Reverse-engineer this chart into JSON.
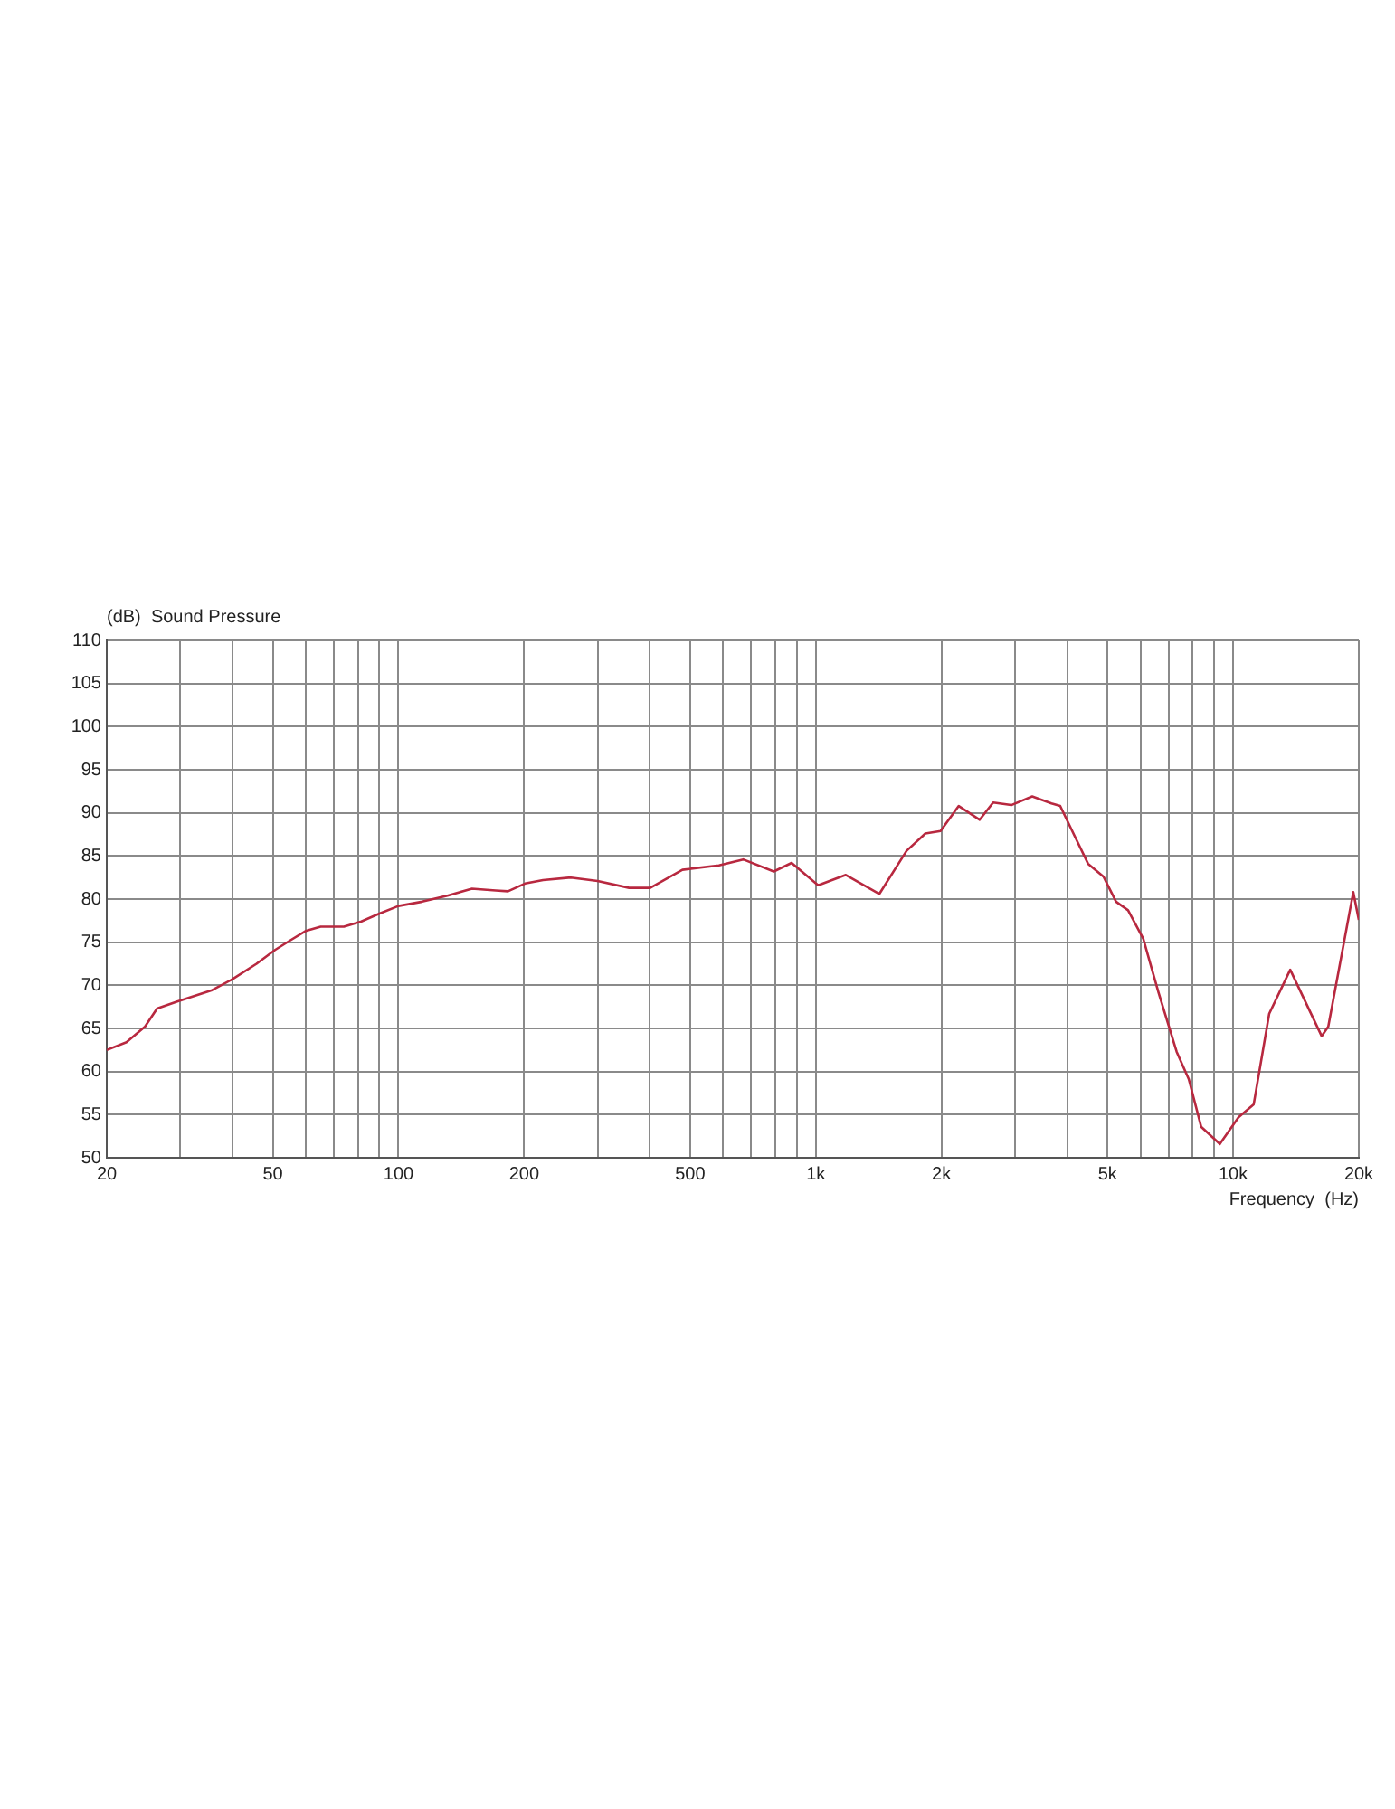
{
  "chart_data": {
    "type": "line",
    "ylabel": "(dB)  Sound Pressure",
    "xlabel": "Frequency  (Hz)",
    "log": "x",
    "grid": true,
    "marker": "none",
    "line_style": "solid",
    "x": [
      20,
      22.3,
      24.7,
      26.4,
      29.4,
      35.6,
      40,
      45.7,
      50.6,
      55,
      59.9,
      65.1,
      74,
      81.5,
      89.8,
      100,
      114,
      131,
      150,
      171,
      183,
      201,
      222,
      259,
      300,
      357,
      401,
      479,
      586,
      670,
      793,
      875,
      1013,
      1180,
      1420,
      1650,
      1830,
      1990,
      2200,
      2470,
      2660,
      2940,
      3300,
      3670,
      3850,
      4200,
      4490,
      4890,
      5240,
      5600,
      6090,
      6620,
      7320,
      7830,
      8380,
      9290,
      10300,
      11200,
      12200,
      13700,
      16300,
      16900,
      19400,
      20000
    ],
    "series": [
      {
        "color": "#b8283f",
        "values": [
          62.5,
          63.4,
          65.2,
          67.3,
          68.1,
          69.4,
          70.7,
          72.5,
          74.1,
          75.2,
          76.3,
          76.8,
          76.8,
          77.4,
          78.3,
          79.2,
          79.7,
          80.4,
          81.2,
          81.0,
          80.9,
          81.8,
          82.2,
          82.5,
          82.1,
          81.3,
          81.3,
          83.4,
          83.9,
          84.6,
          83.2,
          84.2,
          81.6,
          82.8,
          80.6,
          85.6,
          87.6,
          87.9,
          90.8,
          89.2,
          91.2,
          90.9,
          91.9,
          91.1,
          90.8,
          87.0,
          84.1,
          82.6,
          79.7,
          78.7,
          75.4,
          69.2,
          62.3,
          59.1,
          53.6,
          51.6,
          54.7,
          56.2,
          66.7,
          71.8,
          64.1,
          65.2,
          80.8,
          77.6
        ]
      }
    ],
    "xlim": [
      20,
      20000
    ],
    "xticks": [
      {
        "value": 20,
        "label": "20"
      },
      {
        "value": 30,
        "label": null
      },
      {
        "value": 40,
        "label": null
      },
      {
        "value": 50,
        "label": "50"
      },
      {
        "value": 60,
        "label": null
      },
      {
        "value": 70,
        "label": null
      },
      {
        "value": 80,
        "label": null
      },
      {
        "value": 90,
        "label": null
      },
      {
        "value": 100,
        "label": "100"
      },
      {
        "value": 200,
        "label": "200"
      },
      {
        "value": 300,
        "label": null
      },
      {
        "value": 400,
        "label": null
      },
      {
        "value": 500,
        "label": "500"
      },
      {
        "value": 600,
        "label": null
      },
      {
        "value": 700,
        "label": null
      },
      {
        "value": 800,
        "label": null
      },
      {
        "value": 900,
        "label": null
      },
      {
        "value": 1000,
        "label": "1k"
      },
      {
        "value": 2000,
        "label": "2k"
      },
      {
        "value": 3000,
        "label": null
      },
      {
        "value": 4000,
        "label": null
      },
      {
        "value": 5000,
        "label": "5k"
      },
      {
        "value": 6000,
        "label": null
      },
      {
        "value": 7000,
        "label": null
      },
      {
        "value": 8000,
        "label": null
      },
      {
        "value": 9000,
        "label": null
      },
      {
        "value": 10000,
        "label": "10k"
      },
      {
        "value": 20000,
        "label": "20k"
      }
    ],
    "ylim": [
      50,
      110
    ],
    "yticks": [
      50,
      55,
      60,
      65,
      70,
      75,
      80,
      85,
      90,
      95,
      100,
      105,
      110
    ]
  }
}
